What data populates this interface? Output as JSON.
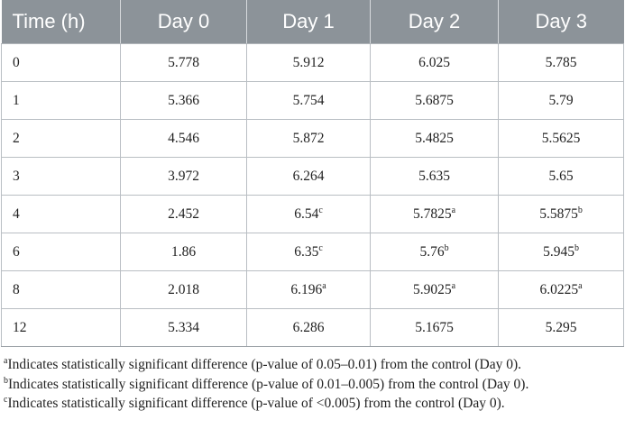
{
  "table": {
    "headers": [
      "Time (h)",
      "Day 0",
      "Day 1",
      "Day 2",
      "Day 3"
    ],
    "rows": [
      [
        {
          "v": "0"
        },
        {
          "v": "5.778"
        },
        {
          "v": "5.912"
        },
        {
          "v": "6.025"
        },
        {
          "v": "5.785"
        }
      ],
      [
        {
          "v": "1"
        },
        {
          "v": "5.366"
        },
        {
          "v": "5.754"
        },
        {
          "v": "5.6875"
        },
        {
          "v": "5.79"
        }
      ],
      [
        {
          "v": "2"
        },
        {
          "v": "4.546"
        },
        {
          "v": "5.872"
        },
        {
          "v": "5.4825"
        },
        {
          "v": "5.5625"
        }
      ],
      [
        {
          "v": "3"
        },
        {
          "v": "3.972"
        },
        {
          "v": "6.264"
        },
        {
          "v": "5.635"
        },
        {
          "v": "5.65"
        }
      ],
      [
        {
          "v": "4"
        },
        {
          "v": "2.452"
        },
        {
          "v": "6.54",
          "sup": "c"
        },
        {
          "v": "5.7825",
          "sup": "a"
        },
        {
          "v": "5.5875",
          "sup": "b"
        }
      ],
      [
        {
          "v": "6"
        },
        {
          "v": "1.86"
        },
        {
          "v": "6.35",
          "sup": "c"
        },
        {
          "v": "5.76",
          "sup": "b"
        },
        {
          "v": "5.945",
          "sup": "b"
        }
      ],
      [
        {
          "v": "8"
        },
        {
          "v": "2.018"
        },
        {
          "v": "6.196",
          "sup": "a"
        },
        {
          "v": "5.9025",
          "sup": "a"
        },
        {
          "v": "6.0225",
          "sup": "a"
        }
      ],
      [
        {
          "v": "12"
        },
        {
          "v": "5.334"
        },
        {
          "v": "6.286"
        },
        {
          "v": "5.1675"
        },
        {
          "v": "5.295"
        }
      ]
    ]
  },
  "footnotes": [
    {
      "mark": "a",
      "text": "Indicates statistically significant difference (p-value of 0.05–0.01) from the control (Day 0)."
    },
    {
      "mark": "b",
      "text": "Indicates statistically significant difference (p-value of 0.01–0.005) from the control (Day 0)."
    },
    {
      "mark": "c",
      "text": "Indicates statistically significant difference (p-value of <0.005) from the control (Day 0)."
    }
  ],
  "colors": {
    "header_bg": "#8c9399",
    "header_text": "#ffffff",
    "border": "#b9bec3"
  }
}
